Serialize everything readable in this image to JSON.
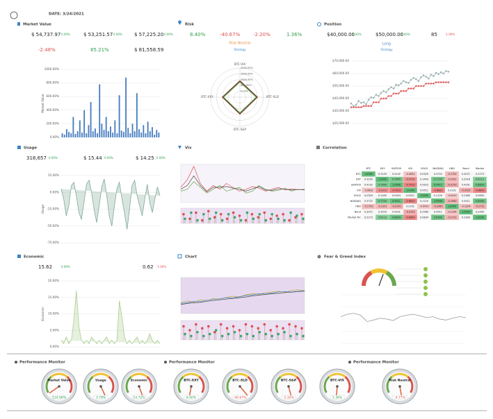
{
  "header": {
    "date": "DATE: 3/24/2021"
  },
  "panels": {
    "market_value": {
      "title": "Market Value",
      "kpis": [
        {
          "value": "$ 54,737.97",
          "change": "0.00%"
        },
        {
          "value": "$ 53,251.57",
          "change": "0.00%"
        },
        {
          "value": "$ 57,225.20",
          "change": "0.00%"
        },
        {
          "value": "-2.48%"
        },
        {
          "value": "85.21%"
        },
        {
          "value": "$ 81,558.59"
        }
      ]
    },
    "risk": {
      "title": "Risk",
      "kpis": [
        "8.40%",
        "-40.67%",
        "-2.20%",
        "1.36%"
      ],
      "mode": "Risk Neutral",
      "strategy": "Strategy"
    },
    "position": {
      "title": "Position",
      "kpis": [
        {
          "value": "$40,000.00",
          "change": "0.00%"
        },
        {
          "value": "$50,000.00",
          "change": "0.00%"
        },
        {
          "value": "85",
          "change": "-1.00%"
        }
      ],
      "side": "Long",
      "strategy": "Strategy"
    },
    "usage": {
      "title": "Usage",
      "kpis": [
        {
          "value": "318,657",
          "change": "0.00%"
        },
        {
          "value": "$ 15.44",
          "change": "0.00%"
        },
        {
          "value": "$ 14.25",
          "change": "0.00%"
        }
      ]
    },
    "vix": {
      "title": "Vix"
    },
    "correlation": {
      "title": "Correlation",
      "columns": [
        "BTC",
        "XXY",
        "S&P500",
        "VIX",
        "GOLD",
        "NASDAQ",
        "HKD",
        "Bond",
        "Market"
      ],
      "rows": [
        {
          "label": "BTC",
          "cells": [
            "1.0000",
            "0.3105",
            "0.4102",
            "-0.0832",
            "0.0329",
            "0.3722",
            "-0.1752",
            "0.3071",
            "0.2273"
          ]
        },
        {
          "label": "XXY",
          "cells": [
            "0.3105",
            "1.0000",
            "0.7654",
            "-0.5210",
            "0.1440",
            "0.7720",
            "-0.2201",
            "0.3516",
            "0.6113"
          ]
        },
        {
          "label": "S&P500",
          "cells": [
            "0.4102",
            "0.7654",
            "1.0000",
            "-0.7012",
            "0.0923",
            "0.9411",
            "-0.3170",
            "0.4201",
            "0.8824"
          ]
        },
        {
          "label": "VIX",
          "cells": [
            "-0.0832",
            "-0.5210",
            "-0.7012",
            "1.0000",
            "0.0511",
            "-0.6820",
            "0.2231",
            "-0.3102",
            "-0.6643"
          ]
        },
        {
          "label": "GOLD",
          "cells": [
            "0.0329",
            "0.1440",
            "0.0923",
            "0.0511",
            "1.0000",
            "0.1120",
            "-0.0410",
            "0.2580",
            "0.0834"
          ]
        },
        {
          "label": "NASDAQ",
          "cells": [
            "0.3722",
            "0.7720",
            "0.9411",
            "-0.6820",
            "0.1120",
            "1.0000",
            "-0.2960",
            "0.4511",
            "0.8540"
          ]
        },
        {
          "label": "HKD",
          "cells": [
            "-0.1752",
            "-0.2201",
            "-0.3170",
            "0.2231",
            "-0.0410",
            "-0.2960",
            "1.0000",
            "-0.1204",
            "-0.2712"
          ]
        },
        {
          "label": "Bond",
          "cells": [
            "0.3071",
            "0.3516",
            "0.4201",
            "-0.3102",
            "0.2580",
            "0.4511",
            "-0.1204",
            "1.0000",
            "0.3390"
          ]
        },
        {
          "label": "Market NC",
          "cells": [
            "0.2273",
            "0.6113",
            "0.8824",
            "-0.6643",
            "0.0834",
            "0.8540",
            "-0.2712",
            "0.3390",
            "1.0000"
          ]
        }
      ]
    },
    "economic": {
      "title": "Economic",
      "kpis": [
        {
          "value": "15.62",
          "change": "0.00%"
        },
        {
          "value": "0.62",
          "change": "-1.00%"
        }
      ]
    },
    "chart": {
      "title": "Chart"
    },
    "fear_greed": {
      "title": "Fear & Greed Index"
    }
  },
  "chart_data": [
    {
      "type": "bar",
      "y_label": "Market Value",
      "color": "#4a7fc1",
      "values": [
        60,
        40,
        120,
        80,
        60,
        300,
        50,
        90,
        250,
        70,
        400,
        60,
        180,
        520,
        90,
        130,
        60,
        780,
        200,
        110,
        300,
        90,
        160,
        70,
        250,
        60,
        620,
        100,
        80,
        880,
        140,
        60,
        200,
        90,
        650,
        120,
        70,
        180,
        60,
        230,
        90,
        150,
        40,
        110,
        70
      ],
      "ylim": [
        0,
        1000
      ],
      "yticks": [
        {
          "value": 0,
          "label": "0.00%"
        },
        {
          "value": 200,
          "label": "200.00%"
        },
        {
          "value": 400,
          "label": "400.00%"
        },
        {
          "value": 600,
          "label": "600.00%"
        },
        {
          "value": 800,
          "label": "800.00%"
        },
        {
          "value": 1000,
          "label": "1000.00%"
        }
      ]
    },
    {
      "type": "radar",
      "axes": [
        "BTC-VIX",
        "BTC-SLD",
        "BTC-S&P",
        "BTC-XXY"
      ],
      "rlim": [
        -500,
        2000
      ],
      "rticks": [
        {
          "value": 2000,
          "label": "2000.00%"
        },
        {
          "value": 1500,
          "label": "1500.00%"
        },
        {
          "value": 1000,
          "label": "1000.00%"
        },
        {
          "value": 500,
          "label": "500.00%"
        },
        {
          "value": 0,
          "label": "0.00%"
        }
      ],
      "series": [
        {
          "color": "#b03a2e",
          "values": [
            900,
            1000,
            950,
            1000
          ]
        },
        {
          "color": "#333333",
          "values": [
            850,
            950,
            900,
            950
          ]
        },
        {
          "color": "#6aa84f",
          "values": [
            800,
            900,
            850,
            900
          ]
        }
      ]
    },
    {
      "type": "line",
      "grid": true,
      "ylim": [
        20000,
        70000
      ],
      "yticks": [
        {
          "value": 20000,
          "label": "$20,000.00"
        },
        {
          "value": 30000,
          "label": "$30,000.00"
        },
        {
          "value": 40000,
          "label": "$40,000.00"
        },
        {
          "value": 50000,
          "label": "$50,000.00"
        },
        {
          "value": 60000,
          "label": "$60,000.00"
        },
        {
          "value": 70000,
          "label": "$70,000.00"
        }
      ],
      "series": [
        {
          "color": "#e06666",
          "values": [
            33000,
            33000,
            33000,
            33000,
            33000,
            34000,
            34000,
            34000,
            34000,
            37000,
            37000,
            37000,
            40000,
            40000,
            40000,
            42000,
            42000,
            44000,
            44000,
            44000,
            46000,
            46000,
            46000,
            48000,
            48000,
            48000,
            50000,
            50000,
            50000,
            50000,
            52000,
            52000,
            52000,
            52000,
            53000,
            53000,
            53000,
            53000,
            53000,
            53000
          ],
          "markers": true
        },
        {
          "color": "#9fb5b5",
          "values": [
            36000,
            34000,
            35000,
            38000,
            36500,
            37000,
            35500,
            39000,
            41000,
            40500,
            43000,
            42000,
            44500,
            46000,
            45000,
            47500,
            49000,
            48000,
            51000,
            50500,
            52000,
            54000,
            53000,
            52500,
            55000,
            56500,
            55500,
            54000,
            57000,
            58500,
            57500,
            56000,
            59000,
            58000,
            60500,
            59500,
            61000,
            60000,
            62000,
            61500
          ],
          "markers": true
        }
      ]
    },
    {
      "type": "area",
      "y_label": "Usage",
      "color": "#7fa896",
      "ylim": [
        -75,
        25
      ],
      "yticks": [
        {
          "value": -75,
          "label": "-75.00%"
        },
        {
          "value": -50,
          "label": "-50.00%"
        },
        {
          "value": -25,
          "label": "-25.00%"
        },
        {
          "value": 0,
          "label": "0.00%"
        },
        {
          "value": 25,
          "label": "25.00%"
        }
      ],
      "values": [
        5,
        -10,
        -35,
        -20,
        10,
        15,
        -5,
        -30,
        -40,
        -15,
        12,
        18,
        0,
        -25,
        -45,
        -20,
        8,
        20,
        -5,
        -35,
        -50,
        -20,
        5,
        15,
        -10,
        -30,
        -55,
        -25,
        10,
        18,
        -5,
        -20,
        -35,
        -10,
        12,
        -15,
        -30,
        -10,
        8,
        -5
      ]
    },
    {
      "type": "multi",
      "ylim": [
        0,
        100
      ],
      "sub_ylim": [
        0,
        10
      ],
      "series": [
        {
          "color": "#d9534f",
          "values": [
            40,
            60,
            95,
            50,
            30,
            45,
            35,
            50,
            40,
            30,
            35,
            42,
            38,
            30,
            35,
            40,
            33,
            36,
            34,
            35
          ]
        },
        {
          "color": "#6aa84f",
          "values": [
            30,
            35,
            55,
            40,
            25,
            35,
            45,
            30,
            35,
            40,
            25,
            30,
            45,
            35,
            30,
            32,
            38,
            30,
            35,
            33
          ]
        },
        {
          "color": "#444444",
          "values": [
            35,
            45,
            70,
            45,
            28,
            40,
            40,
            42,
            38,
            35,
            30,
            36,
            42,
            33,
            32,
            36,
            35,
            33,
            34,
            34
          ]
        }
      ],
      "sub_series": [
        {
          "color": "#d9534f",
          "values": [
            6,
            3,
            7,
            2,
            8,
            4,
            6,
            3,
            7,
            5,
            2,
            6,
            4,
            7,
            3,
            5,
            6,
            2,
            4,
            6
          ]
        },
        {
          "color": "#3aa86b",
          "values": [
            3,
            7,
            2,
            6,
            3,
            7,
            2,
            6,
            4,
            2,
            7,
            3,
            6,
            2,
            6,
            3,
            2,
            7,
            5,
            3
          ]
        }
      ]
    },
    {
      "type": "area",
      "y_label": "Economic",
      "color": "#a9cc8e",
      "ylim": [
        0,
        20
      ],
      "yticks": [
        {
          "value": 0,
          "label": "0.00%"
        },
        {
          "value": 5,
          "label": "5.00%"
        },
        {
          "value": 10,
          "label": "10.00%"
        },
        {
          "value": 15,
          "label": "15.00%"
        },
        {
          "value": 20,
          "label": "20.00%"
        }
      ],
      "values": [
        2,
        1,
        3,
        1,
        2,
        8,
        17,
        6,
        2,
        1,
        2,
        1,
        3,
        2,
        1,
        2,
        1,
        2,
        3,
        1,
        2,
        1,
        2,
        14,
        9,
        3,
        1,
        2,
        1,
        2,
        3,
        1,
        2,
        1,
        2,
        4,
        2,
        1,
        2,
        1
      ]
    },
    {
      "type": "multi",
      "ylim": [
        0,
        100
      ],
      "sub_ylim": [
        0,
        10
      ],
      "series": [
        {
          "color": "#c9a227",
          "values": [
            30,
            35,
            32,
            38,
            36,
            42,
            40,
            45,
            48,
            46,
            52,
            55,
            53,
            58,
            60,
            62,
            59,
            64,
            66,
            63
          ]
        },
        {
          "color": "#3d85c6",
          "values": [
            28,
            30,
            34,
            33,
            37,
            39,
            41,
            44,
            43,
            47,
            50,
            52,
            55,
            54,
            57,
            60,
            61,
            60,
            62,
            64
          ]
        },
        {
          "color": "#444444",
          "values": [
            25,
            28,
            30,
            31,
            34,
            36,
            38,
            40,
            42,
            44,
            46,
            49,
            51,
            53,
            55,
            56,
            58,
            59,
            61,
            62
          ]
        }
      ],
      "sub_series": [
        {
          "color": "#d9534f",
          "values": [
            7,
            5,
            8,
            6,
            7,
            4,
            8,
            6,
            7,
            5,
            8,
            7,
            6,
            8,
            5,
            7,
            6,
            8,
            7,
            6
          ]
        },
        {
          "color": "#3aa86b",
          "values": [
            3,
            2,
            4,
            2,
            3,
            5,
            2,
            3,
            4,
            2,
            3,
            2,
            4,
            3,
            2,
            3,
            4,
            2,
            3,
            2
          ]
        }
      ]
    },
    {
      "type": "line",
      "grid": true,
      "ylim": [
        0,
        100
      ],
      "series": [
        {
          "color": "#999999",
          "values": [
            55,
            60,
            62,
            58,
            45,
            48,
            52,
            50,
            47,
            55,
            58,
            60,
            57,
            53,
            55,
            50,
            48,
            52,
            55,
            53
          ]
        }
      ]
    }
  ],
  "monitors": [
    {
      "title": "Performance Monitor",
      "gauges": [
        {
          "label": "Market Value",
          "value": "124.98%"
        },
        {
          "label": "Usage",
          "value": "3.78%"
        },
        {
          "label": "Economic",
          "value": "14.72%"
        }
      ]
    },
    {
      "title": "Performance Monitor",
      "gauges": [
        {
          "label": "BTC-XXY",
          "value": "8.40%"
        },
        {
          "label": "BTC-SLD",
          "value": "-40.67%"
        },
        {
          "label": "BTC-S&P",
          "value": "-2.20%"
        },
        {
          "label": "BTC-VIX",
          "value": "1.36%"
        }
      ]
    },
    {
      "title": "Performance Monitor",
      "gauges": [
        {
          "label": "Risk Neutral",
          "value": "-4.77%"
        }
      ]
    }
  ]
}
